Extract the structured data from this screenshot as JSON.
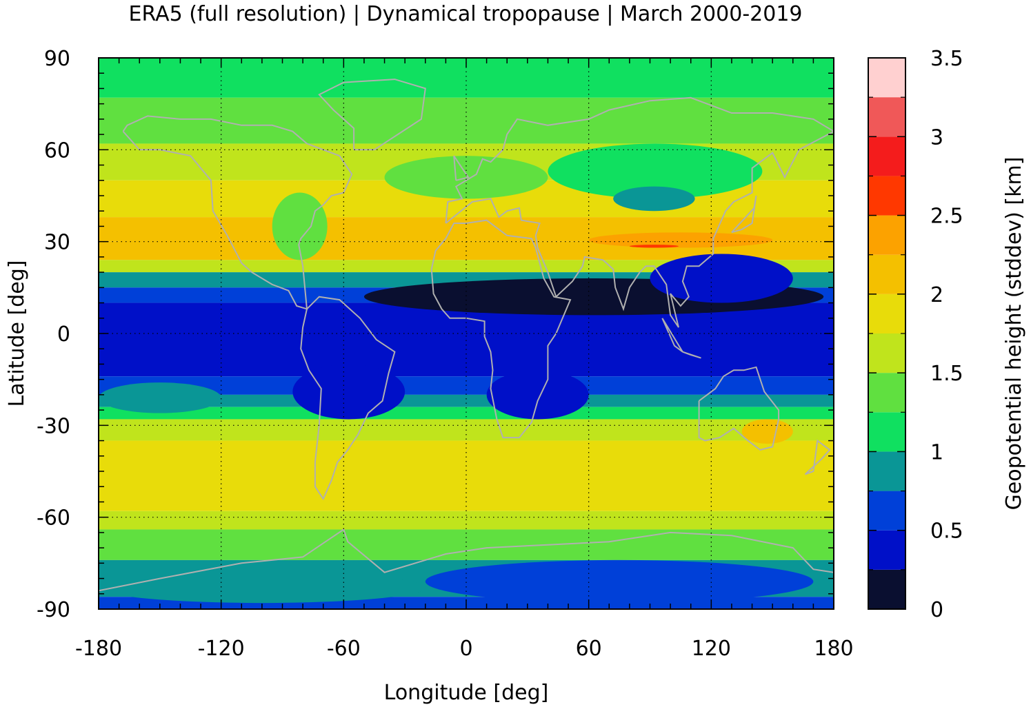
{
  "chart_data": {
    "type": "heatmap",
    "title": "ERA5 (full resolution) | Dynamical tropopause | March 2000-2019",
    "xlabel": "Longitude [deg]",
    "ylabel": "Latitude [deg]",
    "colorbar_label": "Geopotential height (stddev) [km]",
    "xlim": [
      -180,
      180
    ],
    "ylim": [
      -90,
      90
    ],
    "x_ticks": [
      -180,
      -120,
      -60,
      0,
      60,
      120,
      180
    ],
    "y_ticks": [
      90,
      60,
      30,
      0,
      -30,
      -60,
      -90
    ],
    "x_tick_labels": [
      "-180",
      "-120",
      "-60",
      "0",
      "60",
      "120",
      "180"
    ],
    "y_tick_labels": [
      "90",
      "60",
      "30",
      "0",
      "-30",
      "-60",
      "-90"
    ],
    "grid": true,
    "colorbar": {
      "range": [
        0,
        3.5
      ],
      "ticks": [
        0,
        0.5,
        1,
        1.5,
        2,
        2.5,
        3,
        3.5
      ],
      "tick_labels": [
        "0",
        "0.5",
        "1",
        "1.5",
        "2",
        "2.5",
        "3",
        "3.5"
      ],
      "levels": [
        0,
        0.25,
        0.5,
        0.75,
        1,
        1.25,
        1.5,
        1.75,
        2,
        2.25,
        2.5,
        2.75,
        3,
        3.25,
        3.5
      ],
      "colors": [
        "#0a0f30",
        "#0010c8",
        "#0040d8",
        "#0a9696",
        "#10e060",
        "#60e040",
        "#c0e41c",
        "#e8dc0a",
        "#f4c000",
        "#fca200",
        "#ff3800",
        "#f41c1c",
        "#f05858",
        "#ffd0d0"
      ]
    },
    "zonal_bands_stddev_km": [
      {
        "lat": [
          77,
          90
        ],
        "value": 1.1
      },
      {
        "lat": [
          62,
          77
        ],
        "value": 1.3
      },
      {
        "lat": [
          50,
          62
        ],
        "value": 1.6
      },
      {
        "lat": [
          38,
          50
        ],
        "value": 1.8
      },
      {
        "lat": [
          30,
          38
        ],
        "value": 2.0
      },
      {
        "lat": [
          24,
          30
        ],
        "value": 2.2
      },
      {
        "lat": [
          20,
          24
        ],
        "value": 1.6
      },
      {
        "lat": [
          15,
          20
        ],
        "value": 0.9
      },
      {
        "lat": [
          10,
          15
        ],
        "value": 0.6
      },
      {
        "lat": [
          -14,
          10
        ],
        "value": 0.4
      },
      {
        "lat": [
          -20,
          -14
        ],
        "value": 0.6
      },
      {
        "lat": [
          -24,
          -20
        ],
        "value": 0.9
      },
      {
        "lat": [
          -28,
          -24
        ],
        "value": 1.2
      },
      {
        "lat": [
          -35,
          -28
        ],
        "value": 1.7
      },
      {
        "lat": [
          -58,
          -35
        ],
        "value": 1.9
      },
      {
        "lat": [
          -64,
          -58
        ],
        "value": 1.6
      },
      {
        "lat": [
          -74,
          -64
        ],
        "value": 1.3
      },
      {
        "lat": [
          -86,
          -74
        ],
        "value": 0.9
      },
      {
        "lat": [
          -90,
          -86
        ],
        "value": 0.6
      }
    ],
    "features_stddev_km": [
      {
        "lon": [
          -95,
          -68
        ],
        "lat": [
          24,
          46
        ],
        "value": 1.3
      },
      {
        "lon": [
          -40,
          40
        ],
        "lat": [
          44,
          58
        ],
        "value": 1.4
      },
      {
        "lon": [
          40,
          145
        ],
        "lat": [
          44,
          62
        ],
        "value": 1.2
      },
      {
        "lon": [
          72,
          112
        ],
        "lat": [
          40,
          48
        ],
        "value": 0.9
      },
      {
        "lon": [
          60,
          150
        ],
        "lat": [
          28,
          33
        ],
        "value": 2.3
      },
      {
        "lon": [
          -170,
          -130
        ],
        "lat": [
          26,
          36
        ],
        "value": 2.2
      },
      {
        "lon": [
          80,
          104
        ],
        "lat": [
          28,
          29
        ],
        "value": 2.7
      },
      {
        "lon": [
          -50,
          175
        ],
        "lat": [
          6,
          18
        ],
        "value": 0.15
      },
      {
        "lon": [
          90,
          160
        ],
        "lat": [
          10,
          26
        ],
        "value": 0.4
      },
      {
        "lon": [
          -85,
          -30
        ],
        "lat": [
          -28,
          -10
        ],
        "value": 0.4
      },
      {
        "lon": [
          10,
          60
        ],
        "lat": [
          -28,
          -12
        ],
        "value": 0.4
      },
      {
        "lon": [
          -180,
          -120
        ],
        "lat": [
          -26,
          -16
        ],
        "value": 0.9
      },
      {
        "lon": [
          135,
          160
        ],
        "lat": [
          -36,
          -28
        ],
        "value": 2.2
      },
      {
        "lon": [
          -20,
          170
        ],
        "lat": [
          -88,
          -74
        ],
        "value": 0.6
      },
      {
        "lon": [
          -180,
          -20
        ],
        "lat": [
          -88,
          -78
        ],
        "value": 0.9
      }
    ]
  }
}
